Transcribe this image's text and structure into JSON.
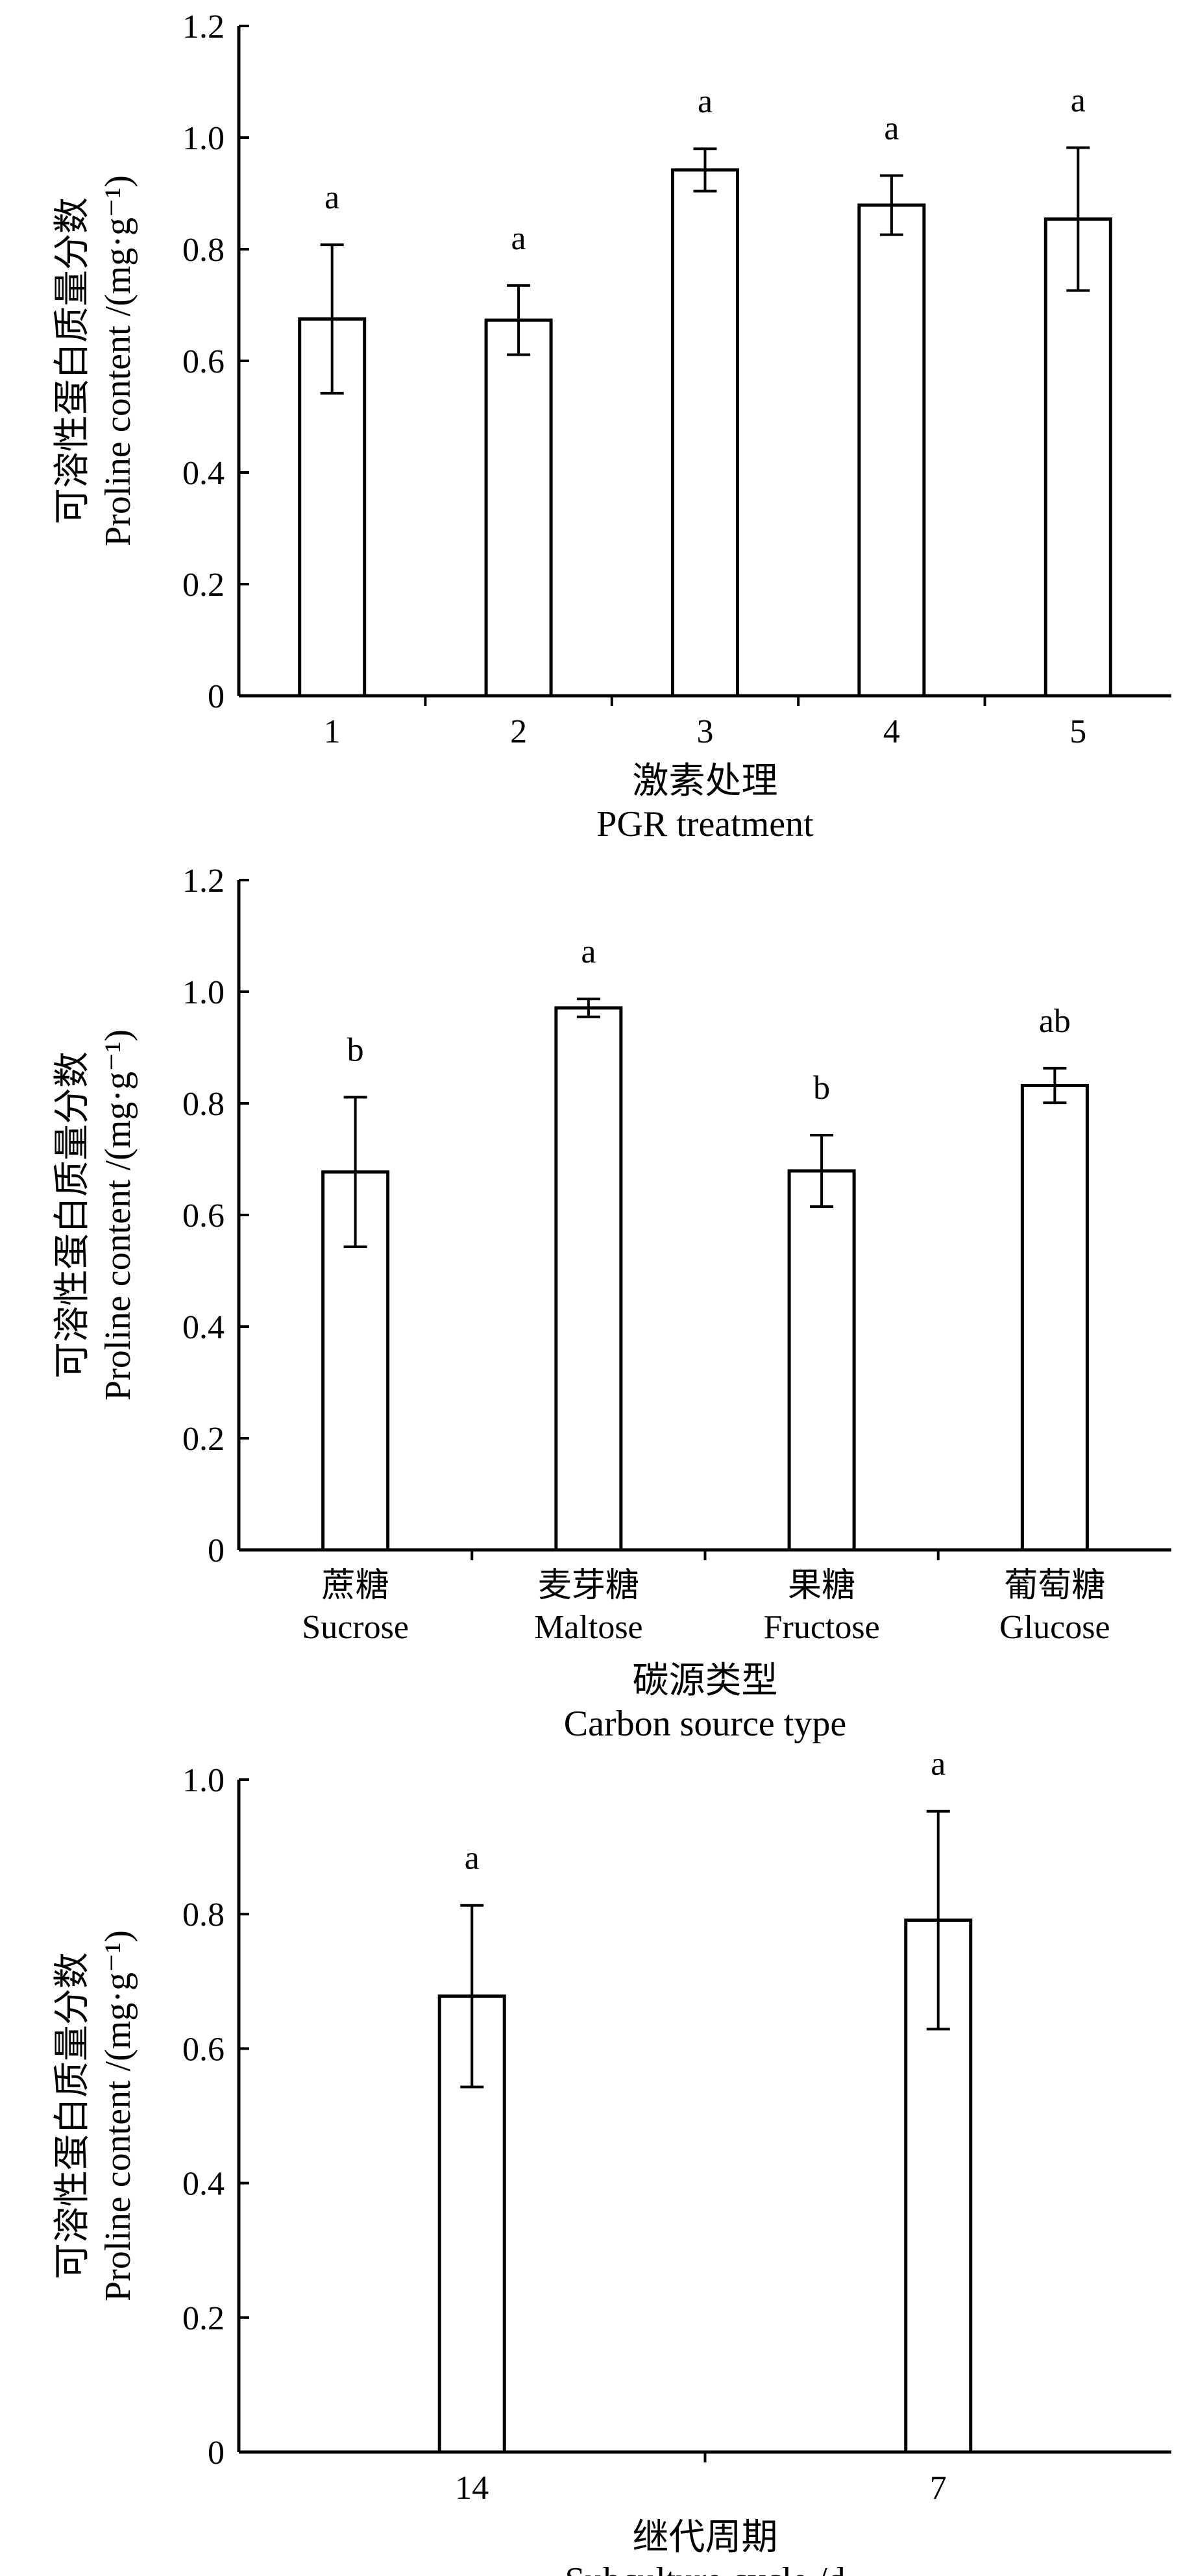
{
  "chart_data": [
    {
      "type": "bar",
      "ylabel_cn": "可溶性蛋白质量分数",
      "ylabel_en": "Proline content /(mg·g⁻¹)",
      "xlabel_cn": "激素处理",
      "xlabel_en": "PGR treatment",
      "ylim": [
        0,
        1.2
      ],
      "yticks": [
        "0",
        "0.2",
        "0.4",
        "0.6",
        "0.8",
        "1.0",
        "1.2"
      ],
      "categories": [
        {
          "line1": "1",
          "line2": ""
        },
        {
          "line1": "2",
          "line2": ""
        },
        {
          "line1": "3",
          "line2": ""
        },
        {
          "line1": "4",
          "line2": ""
        },
        {
          "line1": "5",
          "line2": ""
        }
      ],
      "values": [
        0.675,
        0.673,
        0.942,
        0.879,
        0.854
      ],
      "errors": [
        0.133,
        0.062,
        0.038,
        0.053,
        0.128
      ],
      "significance": [
        "a",
        "a",
        "a",
        "a",
        "a"
      ]
    },
    {
      "type": "bar",
      "ylabel_cn": "可溶性蛋白质量分数",
      "ylabel_en": "Proline content /(mg·g⁻¹)",
      "xlabel_cn": "碳源类型",
      "xlabel_en": "Carbon source type",
      "ylim": [
        0,
        1.2
      ],
      "yticks": [
        "0",
        "0.2",
        "0.4",
        "0.6",
        "0.8",
        "1.0",
        "1.2"
      ],
      "categories": [
        {
          "line1": "蔗糖",
          "line2": "Sucrose"
        },
        {
          "line1": "麦芽糖",
          "line2": "Maltose"
        },
        {
          "line1": "果糖",
          "line2": "Fructose"
        },
        {
          "line1": "葡萄糖",
          "line2": "Glucose"
        }
      ],
      "values": [
        0.677,
        0.971,
        0.679,
        0.832
      ],
      "errors": [
        0.134,
        0.016,
        0.064,
        0.031
      ],
      "significance": [
        "b",
        "a",
        "b",
        "ab"
      ]
    },
    {
      "type": "bar",
      "ylabel_cn": "可溶性蛋白质量分数",
      "ylabel_en": "Proline content /(mg·g⁻¹)",
      "xlabel_cn": "继代周期",
      "xlabel_en": "Subculture cycle /d",
      "ylim": [
        0,
        1.0
      ],
      "yticks": [
        "0",
        "0.2",
        "0.4",
        "0.6",
        "0.8",
        "1.0"
      ],
      "categories": [
        {
          "line1": "14",
          "line2": ""
        },
        {
          "line1": "7",
          "line2": ""
        }
      ],
      "values": [
        0.678,
        0.791
      ],
      "errors": [
        0.135,
        0.162
      ],
      "significance": [
        "a",
        "a"
      ]
    }
  ]
}
